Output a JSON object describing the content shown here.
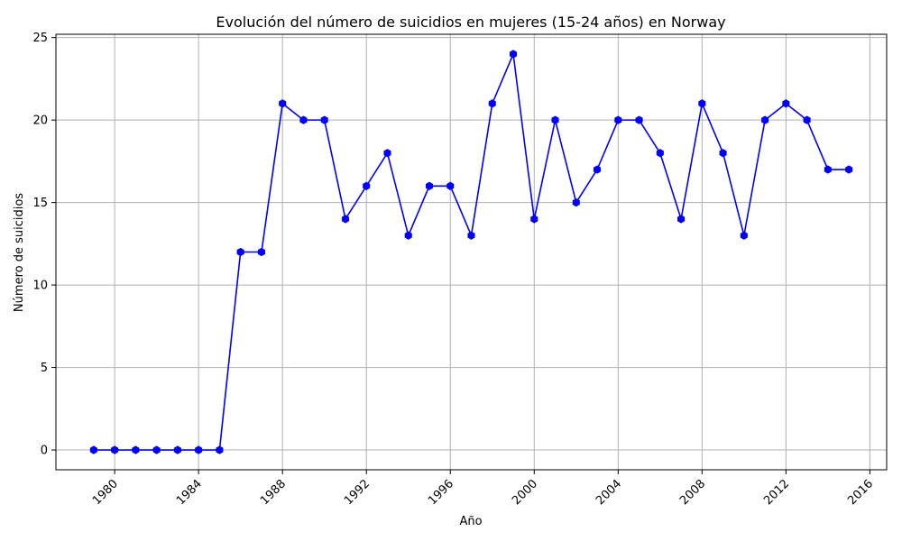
{
  "chart_data": {
    "type": "line",
    "title": "Evolución del número de suicidios en mujeres (15-24 años) en Norway",
    "xlabel": "Año",
    "ylabel": "Número de suicidios",
    "x": [
      1979,
      1980,
      1981,
      1982,
      1983,
      1984,
      1985,
      1986,
      1987,
      1988,
      1989,
      1990,
      1991,
      1992,
      1993,
      1994,
      1995,
      1996,
      1997,
      1998,
      1999,
      2000,
      2001,
      2002,
      2003,
      2004,
      2005,
      2006,
      2007,
      2008,
      2009,
      2010,
      2011,
      2012,
      2013,
      2014,
      2015
    ],
    "y": [
      0,
      0,
      0,
      0,
      0,
      0,
      0,
      12,
      12,
      21,
      20,
      20,
      14,
      16,
      18,
      13,
      16,
      16,
      13,
      21,
      24,
      14,
      20,
      15,
      17,
      20,
      20,
      18,
      14,
      21,
      18,
      13,
      20,
      21,
      20,
      17,
      17
    ],
    "xticks": [
      "1980",
      "1984",
      "1988",
      "1992",
      "1996",
      "2000",
      "2004",
      "2008",
      "2012",
      "2016"
    ],
    "yticks": [
      "0",
      "5",
      "10",
      "15",
      "20",
      "25"
    ],
    "xlim": [
      1977.2,
      2016.8
    ],
    "ylim": [
      -1.2,
      25.2
    ],
    "grid": true,
    "line_color": "#0000ff",
    "marker": "hexagon"
  }
}
